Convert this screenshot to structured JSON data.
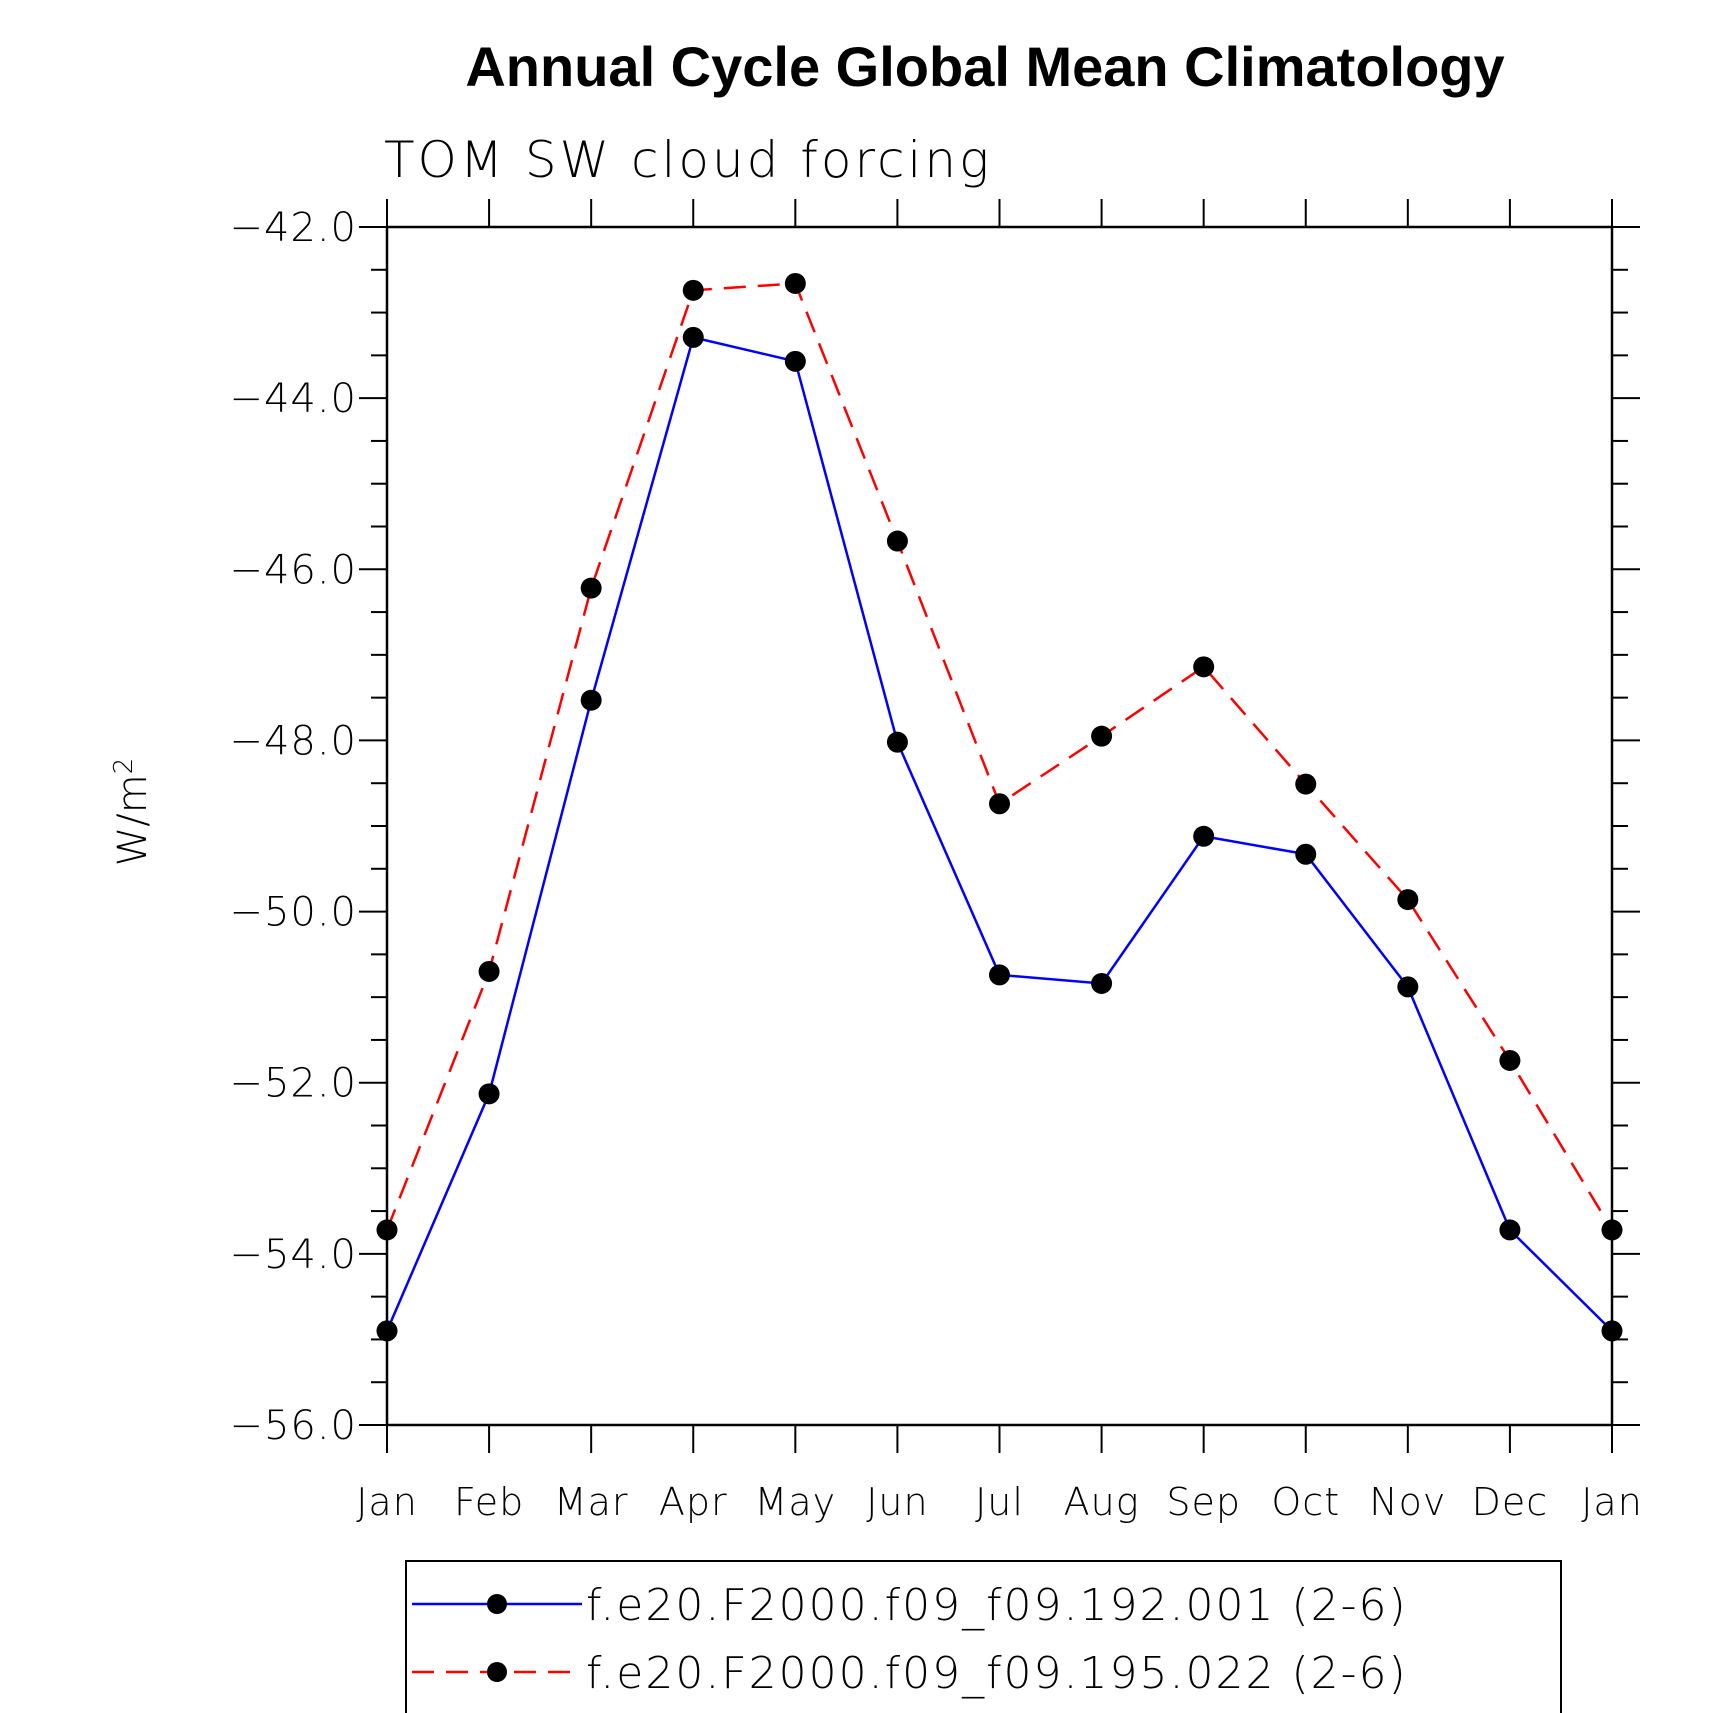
{
  "chart_data": {
    "type": "line",
    "title": "Annual Cycle Global Mean Climatology",
    "subtitle": "TOM SW cloud forcing",
    "ylabel": "W/m",
    "ylabel_superscript": "2",
    "xlabel": "",
    "ylim": [
      -56,
      -42
    ],
    "y_ticks": [
      "-42.0",
      "-44.0",
      "-46.0",
      "-48.0",
      "-50.0",
      "-52.0",
      "-54.0",
      "-56.0"
    ],
    "y_tick_values": [
      -42,
      -44,
      -46,
      -48,
      -50,
      -52,
      -54,
      -56
    ],
    "categories": [
      "Jan",
      "Feb",
      "Mar",
      "Apr",
      "May",
      "Jun",
      "Jul",
      "Aug",
      "Sep",
      "Oct",
      "Nov",
      "Dec",
      "Jan"
    ],
    "grid": false,
    "legend_position": "bottom",
    "series": [
      {
        "name": "f.e20.F2000.f09_f09.192.001 (2-6)",
        "color": "#0000ff",
        "dash": "solid",
        "values": [
          -54.9,
          -52.13,
          -47.53,
          -43.29,
          -43.57,
          -48.02,
          -50.74,
          -50.84,
          -49.12,
          -49.33,
          -50.88,
          -53.72,
          -54.9
        ]
      },
      {
        "name": "f.e20.F2000.f09_f09.195.022 (2-6)",
        "color": "#ff0000",
        "dash": "dashed",
        "values": [
          -53.72,
          -50.7,
          -46.22,
          -42.74,
          -42.66,
          -45.67,
          -48.74,
          -47.95,
          -47.14,
          -48.51,
          -49.86,
          -51.74,
          -53.72
        ]
      }
    ]
  }
}
